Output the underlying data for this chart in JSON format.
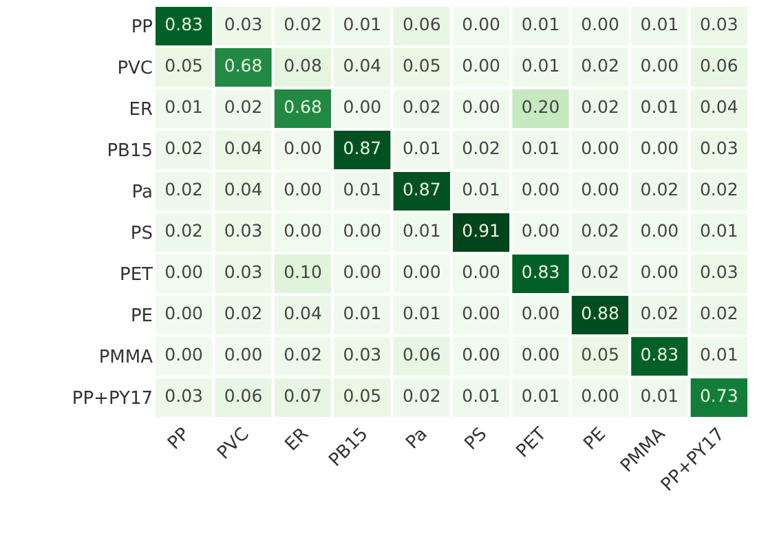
{
  "chart_data": {
    "type": "heatmap",
    "categories": [
      "PP",
      "PVC",
      "ER",
      "PB15",
      "Pa",
      "PS",
      "PET",
      "PE",
      "PMMA",
      "PP+PY17"
    ],
    "y_categories": [
      "PP",
      "PVC",
      "ER",
      "PB15",
      "Pa",
      "PS",
      "PET",
      "PE",
      "PMMA",
      "PP+PY17"
    ],
    "cells": [
      [
        0.83,
        0.03,
        0.02,
        0.01,
        0.06,
        0.0,
        0.01,
        0.0,
        0.01,
        0.03
      ],
      [
        0.05,
        0.68,
        0.08,
        0.04,
        0.05,
        0.0,
        0.01,
        0.02,
        0.0,
        0.06
      ],
      [
        0.01,
        0.02,
        0.68,
        0.0,
        0.02,
        0.0,
        0.2,
        0.02,
        0.01,
        0.04
      ],
      [
        0.02,
        0.04,
        0.0,
        0.87,
        0.01,
        0.02,
        0.01,
        0.0,
        0.0,
        0.03
      ],
      [
        0.02,
        0.04,
        0.0,
        0.01,
        0.87,
        0.01,
        0.0,
        0.0,
        0.02,
        0.02
      ],
      [
        0.02,
        0.03,
        0.0,
        0.0,
        0.01,
        0.91,
        0.0,
        0.02,
        0.0,
        0.01
      ],
      [
        0.0,
        0.03,
        0.1,
        0.0,
        0.0,
        0.0,
        0.83,
        0.02,
        0.0,
        0.03
      ],
      [
        0.0,
        0.02,
        0.04,
        0.01,
        0.01,
        0.0,
        0.0,
        0.88,
        0.02,
        0.02
      ],
      [
        0.0,
        0.0,
        0.02,
        0.03,
        0.06,
        0.0,
        0.0,
        0.05,
        0.83,
        0.01
      ],
      [
        0.03,
        0.06,
        0.07,
        0.05,
        0.02,
        0.01,
        0.01,
        0.0,
        0.01,
        0.73
      ]
    ],
    "cell_labels": [
      [
        "0.83",
        "0.03",
        "0.02",
        "0.01",
        "0.06",
        "0.00",
        "0.01",
        "0.00",
        "0.01",
        "0.03"
      ],
      [
        "0.05",
        "0.68",
        "0.08",
        "0.04",
        "0.05",
        "0.00",
        "0.01",
        "0.02",
        "0.00",
        "0.06"
      ],
      [
        "0.01",
        "0.02",
        "0.68",
        "0.00",
        "0.02",
        "0.00",
        "0.20",
        "0.02",
        "0.01",
        "0.04"
      ],
      [
        "0.02",
        "0.04",
        "0.00",
        "0.87",
        "0.01",
        "0.02",
        "0.01",
        "0.00",
        "0.00",
        "0.03"
      ],
      [
        "0.02",
        "0.04",
        "0.00",
        "0.01",
        "0.87",
        "0.01",
        "0.00",
        "0.00",
        "0.02",
        "0.02"
      ],
      [
        "0.02",
        "0.03",
        "0.00",
        "0.00",
        "0.01",
        "0.91",
        "0.00",
        "0.02",
        "0.00",
        "0.01"
      ],
      [
        "0.00",
        "0.03",
        "0.10",
        "0.00",
        "0.00",
        "0.00",
        "0.83",
        "0.02",
        "0.00",
        "0.03"
      ],
      [
        "0.00",
        "0.02",
        "0.04",
        "0.01",
        "0.01",
        "0.00",
        "0.00",
        "0.88",
        "0.02",
        "0.02"
      ],
      [
        "0.00",
        "0.00",
        "0.02",
        "0.03",
        "0.06",
        "0.00",
        "0.00",
        "0.05",
        "0.83",
        "0.01"
      ],
      [
        "0.03",
        "0.06",
        "0.07",
        "0.05",
        "0.02",
        "0.01",
        "0.01",
        "0.00",
        "0.01",
        "0.73"
      ]
    ]
  }
}
